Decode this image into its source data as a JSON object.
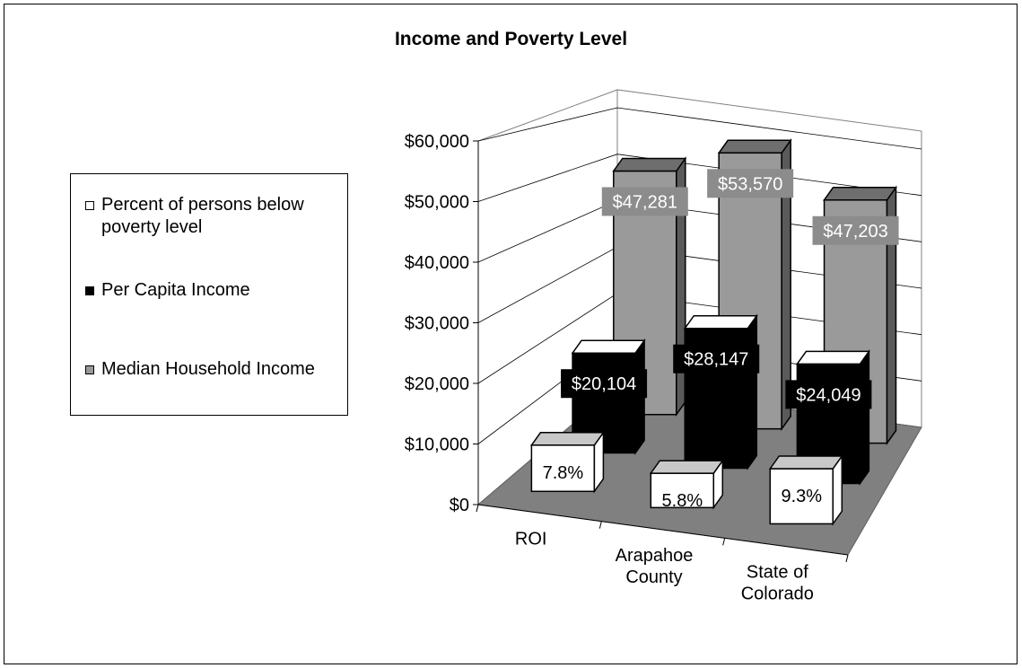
{
  "chart_data": {
    "type": "bar",
    "title": "Income and Poverty Level",
    "categories": [
      "ROI",
      "Arapahoe County",
      "State of Colorado"
    ],
    "category_lines": [
      [
        "ROI"
      ],
      [
        "Arapahoe",
        "County"
      ],
      [
        "State of",
        "Colorado"
      ]
    ],
    "series": [
      {
        "name": "Percent of persons below poverty level",
        "values": [
          7.8,
          5.8,
          9.3
        ],
        "labels": [
          "7.8%",
          "5.8%",
          "9.3%"
        ],
        "color": "#ffffff"
      },
      {
        "name": "Per Capita Income",
        "values": [
          20104,
          28147,
          24049
        ],
        "labels": [
          "$20,104",
          "$28,147",
          "$24,049"
        ],
        "color": "#000000"
      },
      {
        "name": "Median Household Income",
        "values": [
          47281,
          53570,
          47203
        ],
        "labels": [
          "$47,281",
          "$53,570",
          "$47,203"
        ],
        "color": "#9a9a9a"
      }
    ],
    "y_ticks": [
      "$0",
      "$10,000",
      "$20,000",
      "$30,000",
      "$40,000",
      "$50,000",
      "$60,000"
    ],
    "ylim": [
      0,
      60000
    ],
    "grid": true,
    "legend_position": "left",
    "xlabel": "",
    "ylabel": ""
  }
}
